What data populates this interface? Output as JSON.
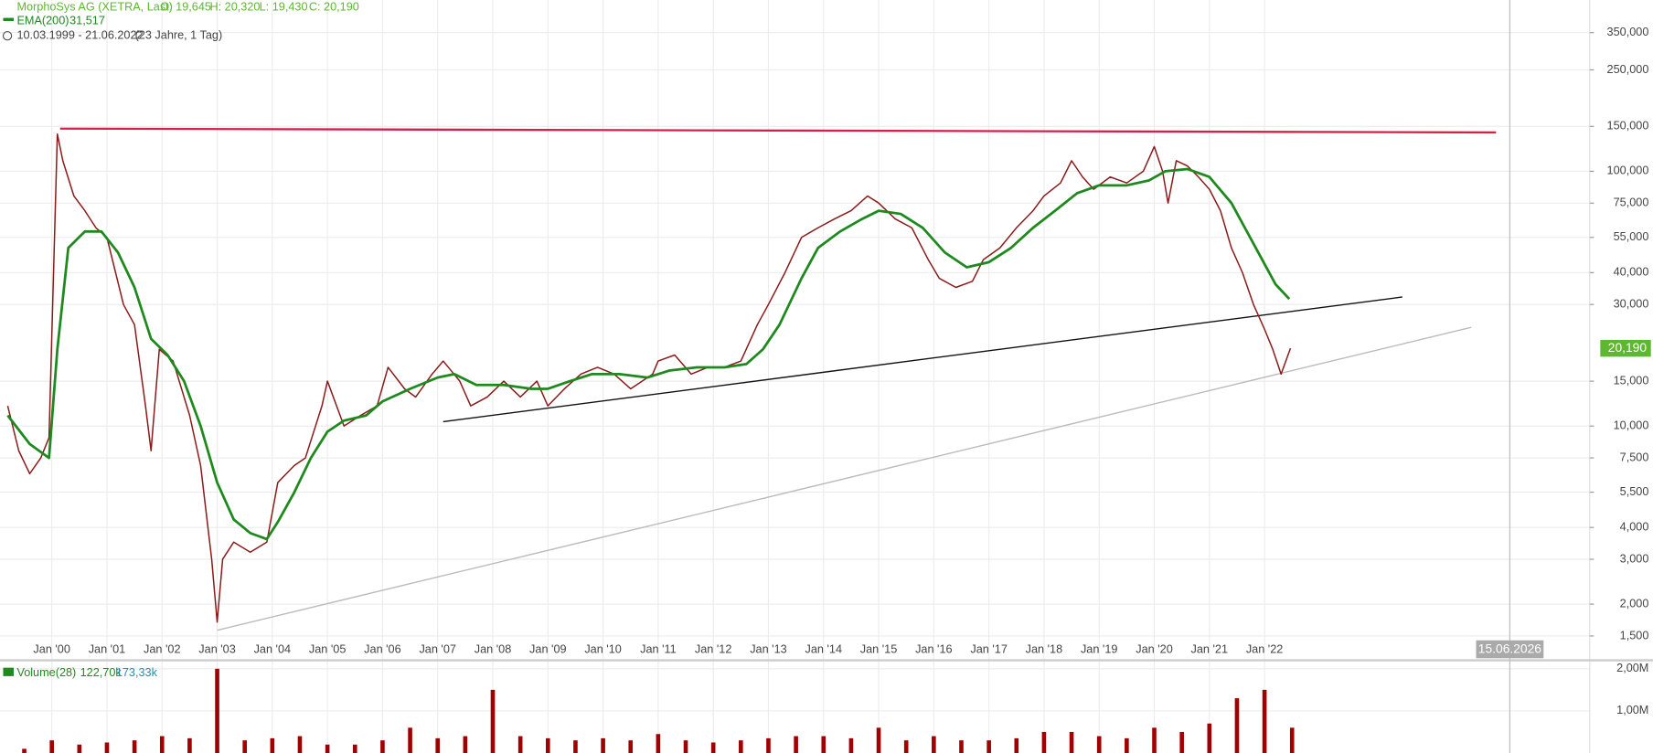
{
  "chart_data": {
    "type": "line",
    "title": "MorphoSys AG (XETRA, Last)",
    "ohlc": [
      "O: 19,645",
      "H: 20,320",
      "L: 19,430",
      "C: 20,190"
    ],
    "period": "10.03.1999 - 21.06.2022",
    "period_note": "(23 Jahre, 1 Tag)",
    "log_scale": true,
    "grid": true,
    "xlim": [
      1999.06,
      2027.9
    ],
    "xticks": [
      {
        "value": 2000,
        "label": "Jan '00"
      },
      {
        "value": 2001,
        "label": "Jan '01"
      },
      {
        "value": 2002,
        "label": "Jan '02"
      },
      {
        "value": 2003,
        "label": "Jan '03"
      },
      {
        "value": 2004,
        "label": "Jan '04"
      },
      {
        "value": 2005,
        "label": "Jan '05"
      },
      {
        "value": 2006,
        "label": "Jan '06"
      },
      {
        "value": 2007,
        "label": "Jan '07"
      },
      {
        "value": 2008,
        "label": "Jan '08"
      },
      {
        "value": 2009,
        "label": "Jan '09"
      },
      {
        "value": 2010,
        "label": "Jan '10"
      },
      {
        "value": 2011,
        "label": "Jan '11"
      },
      {
        "value": 2012,
        "label": "Jan '12"
      },
      {
        "value": 2013,
        "label": "Jan '13"
      },
      {
        "value": 2014,
        "label": "Jan '14"
      },
      {
        "value": 2015,
        "label": "Jan '15"
      },
      {
        "value": 2016,
        "label": "Jan '16"
      },
      {
        "value": 2017,
        "label": "Jan '17"
      },
      {
        "value": 2018,
        "label": "Jan '18"
      },
      {
        "value": 2019,
        "label": "Jan '19"
      },
      {
        "value": 2020,
        "label": "Jan '20"
      },
      {
        "value": 2021,
        "label": "Jan '21"
      },
      {
        "value": 2022,
        "label": "Jan '22"
      }
    ],
    "ylim": [
      1.47,
      470
    ],
    "yticks": [
      {
        "value": 1.5,
        "label": "1,500"
      },
      {
        "value": 2,
        "label": "2,000"
      },
      {
        "value": 3,
        "label": "3,000"
      },
      {
        "value": 4,
        "label": "4,000"
      },
      {
        "value": 5.5,
        "label": "5,500"
      },
      {
        "value": 7.5,
        "label": "7,500"
      },
      {
        "value": 10,
        "label": "10,000"
      },
      {
        "value": 15,
        "label": "15,000"
      },
      {
        "value": 30,
        "label": "30,000"
      },
      {
        "value": 40,
        "label": "40,000"
      },
      {
        "value": 55,
        "label": "55,000"
      },
      {
        "value": 75,
        "label": "75,000"
      },
      {
        "value": 100,
        "label": "100,000"
      },
      {
        "value": 150,
        "label": "150,000"
      },
      {
        "value": 250,
        "label": "250,000"
      },
      {
        "value": 350,
        "label": "350,000"
      }
    ],
    "last_price": {
      "value": 20.19,
      "label": "20,190",
      "color": "#5cb82e"
    },
    "cursor": {
      "value": 2026.45,
      "label": "15.06.2026"
    },
    "series": [
      {
        "name": "Price",
        "color": "#8b1a1a",
        "x": [
          1999.2,
          1999.4,
          1999.6,
          1999.8,
          1999.95,
          2000.1,
          2000.2,
          2000.4,
          2000.6,
          2000.8,
          2001.0,
          2001.3,
          2001.5,
          2001.7,
          2001.8,
          2001.95,
          2002.2,
          2002.5,
          2002.7,
          2002.9,
          2003.0,
          2003.1,
          2003.3,
          2003.6,
          2003.9,
          2004.1,
          2004.4,
          2004.6,
          2004.9,
          2005.0,
          2005.3,
          2005.6,
          2005.9,
          2006.1,
          2006.4,
          2006.6,
          2006.9,
          2007.1,
          2007.4,
          2007.6,
          2007.9,
          2008.2,
          2008.5,
          2008.8,
          2009.0,
          2009.3,
          2009.6,
          2009.9,
          2010.2,
          2010.5,
          2010.9,
          2011.0,
          2011.3,
          2011.6,
          2011.9,
          2012.2,
          2012.5,
          2012.8,
          2013.0,
          2013.3,
          2013.6,
          2013.9,
          2014.2,
          2014.5,
          2014.8,
          2015.0,
          2015.3,
          2015.6,
          2015.9,
          2016.1,
          2016.4,
          2016.7,
          2016.9,
          2017.2,
          2017.5,
          2017.8,
          2018.0,
          2018.3,
          2018.5,
          2018.7,
          2018.9,
          2019.2,
          2019.5,
          2019.8,
          2020.0,
          2020.15,
          2020.25,
          2020.4,
          2020.6,
          2020.8,
          2021.0,
          2021.2,
          2021.4,
          2021.6,
          2021.8,
          2022.0,
          2022.15,
          2022.3,
          2022.47
        ],
        "values": [
          12,
          8,
          6.5,
          7.5,
          9,
          140,
          110,
          80,
          70,
          60,
          55,
          30,
          25,
          12,
          8,
          20,
          18,
          11,
          7,
          3,
          1.7,
          3,
          3.5,
          3.2,
          3.5,
          6,
          7,
          7.5,
          12,
          15,
          10,
          11,
          12,
          17,
          14,
          13,
          16,
          18,
          15,
          12,
          13,
          15,
          13,
          15,
          12,
          14,
          16,
          17,
          16,
          14,
          16,
          18,
          19,
          16,
          17,
          17,
          18,
          25,
          30,
          40,
          55,
          60,
          65,
          70,
          80,
          75,
          65,
          60,
          45,
          38,
          35,
          37,
          45,
          50,
          60,
          70,
          80,
          90,
          110,
          95,
          85,
          95,
          90,
          100,
          125,
          100,
          75,
          110,
          105,
          95,
          85,
          70,
          50,
          40,
          30,
          24,
          20,
          16,
          20.19
        ]
      },
      {
        "name": "EMA(200)",
        "value_text": "31,517",
        "color": "#1e8a1e",
        "x": [
          1999.2,
          1999.6,
          1999.95,
          2000.1,
          2000.3,
          2000.6,
          2000.9,
          2001.2,
          2001.5,
          2001.8,
          2002.1,
          2002.4,
          2002.7,
          2003.0,
          2003.3,
          2003.6,
          2003.9,
          2004.1,
          2004.4,
          2004.7,
          2005.0,
          2005.3,
          2005.7,
          2006.0,
          2006.5,
          2007.0,
          2007.3,
          2007.7,
          2008.2,
          2008.7,
          2009.0,
          2009.4,
          2009.8,
          2010.3,
          2010.8,
          2011.2,
          2011.7,
          2012.2,
          2012.6,
          2012.9,
          2013.2,
          2013.6,
          2013.9,
          2014.3,
          2014.7,
          2015.0,
          2015.4,
          2015.8,
          2016.2,
          2016.6,
          2017.0,
          2017.4,
          2017.8,
          2018.2,
          2018.6,
          2019.0,
          2019.5,
          2019.9,
          2020.2,
          2020.6,
          2021.0,
          2021.4,
          2021.8,
          2022.2,
          2022.45
        ],
        "values": [
          11,
          8.5,
          7.5,
          20,
          50,
          58,
          58,
          48,
          35,
          22,
          19,
          15,
          10,
          6,
          4.3,
          3.8,
          3.6,
          4.2,
          5.5,
          7.5,
          9.5,
          10.5,
          11,
          12.5,
          14,
          15.5,
          16,
          14.5,
          14.5,
          14,
          14,
          15,
          16,
          16,
          15.5,
          16.5,
          17,
          17,
          17.5,
          20,
          25,
          38,
          50,
          58,
          65,
          70,
          68,
          60,
          48,
          42,
          44,
          50,
          60,
          70,
          82,
          88,
          88,
          92,
          100,
          102,
          95,
          75,
          52,
          36,
          31.517
        ]
      }
    ],
    "trendlines": [
      {
        "color": "#d4204a",
        "x": [
          2000.15,
          2026.2
        ],
        "values": [
          147,
          142
        ]
      },
      {
        "color": "#111111",
        "x": [
          2007.1,
          2024.5
        ],
        "values": [
          10.4,
          32.1
        ]
      },
      {
        "color": "#bbbbbb",
        "x": [
          2003.0,
          2025.75
        ],
        "values": [
          1.58,
          24.4
        ]
      }
    ],
    "volume": {
      "name": "Volume(28)",
      "readings": [
        "122,70k",
        "173,33k"
      ],
      "color": "#a00000",
      "ylim": [
        0,
        2.175
      ],
      "yticks": [
        {
          "value": 1,
          "label": "1,00M"
        },
        {
          "value": 2,
          "label": "2,00M"
        }
      ],
      "x": [
        1999.5,
        2000.0,
        2000.5,
        2001.0,
        2001.5,
        2002.0,
        2002.5,
        2003.0,
        2003.5,
        2004.0,
        2004.5,
        2005.0,
        2005.5,
        2006.0,
        2006.5,
        2007.0,
        2007.5,
        2008.0,
        2008.5,
        2009.0,
        2009.5,
        2010.0,
        2010.5,
        2011.0,
        2011.5,
        2012.0,
        2012.5,
        2013.0,
        2013.5,
        2014.0,
        2014.5,
        2015.0,
        2015.5,
        2016.0,
        2016.5,
        2017.0,
        2017.5,
        2018.0,
        2018.5,
        2019.0,
        2019.5,
        2020.0,
        2020.5,
        2021.0,
        2021.5,
        2022.0,
        2022.5
      ],
      "values": [
        0.1,
        0.3,
        0.2,
        0.25,
        0.3,
        0.4,
        0.35,
        2.0,
        0.3,
        0.35,
        0.4,
        0.2,
        0.2,
        0.3,
        0.6,
        0.35,
        0.4,
        1.5,
        0.4,
        0.35,
        0.3,
        0.35,
        0.3,
        0.45,
        0.3,
        0.25,
        0.3,
        0.35,
        0.4,
        0.4,
        0.35,
        0.6,
        0.3,
        0.4,
        0.3,
        0.3,
        0.35,
        0.5,
        0.5,
        0.4,
        0.35,
        0.6,
        0.5,
        0.7,
        1.3,
        1.5,
        0.6
      ]
    }
  }
}
